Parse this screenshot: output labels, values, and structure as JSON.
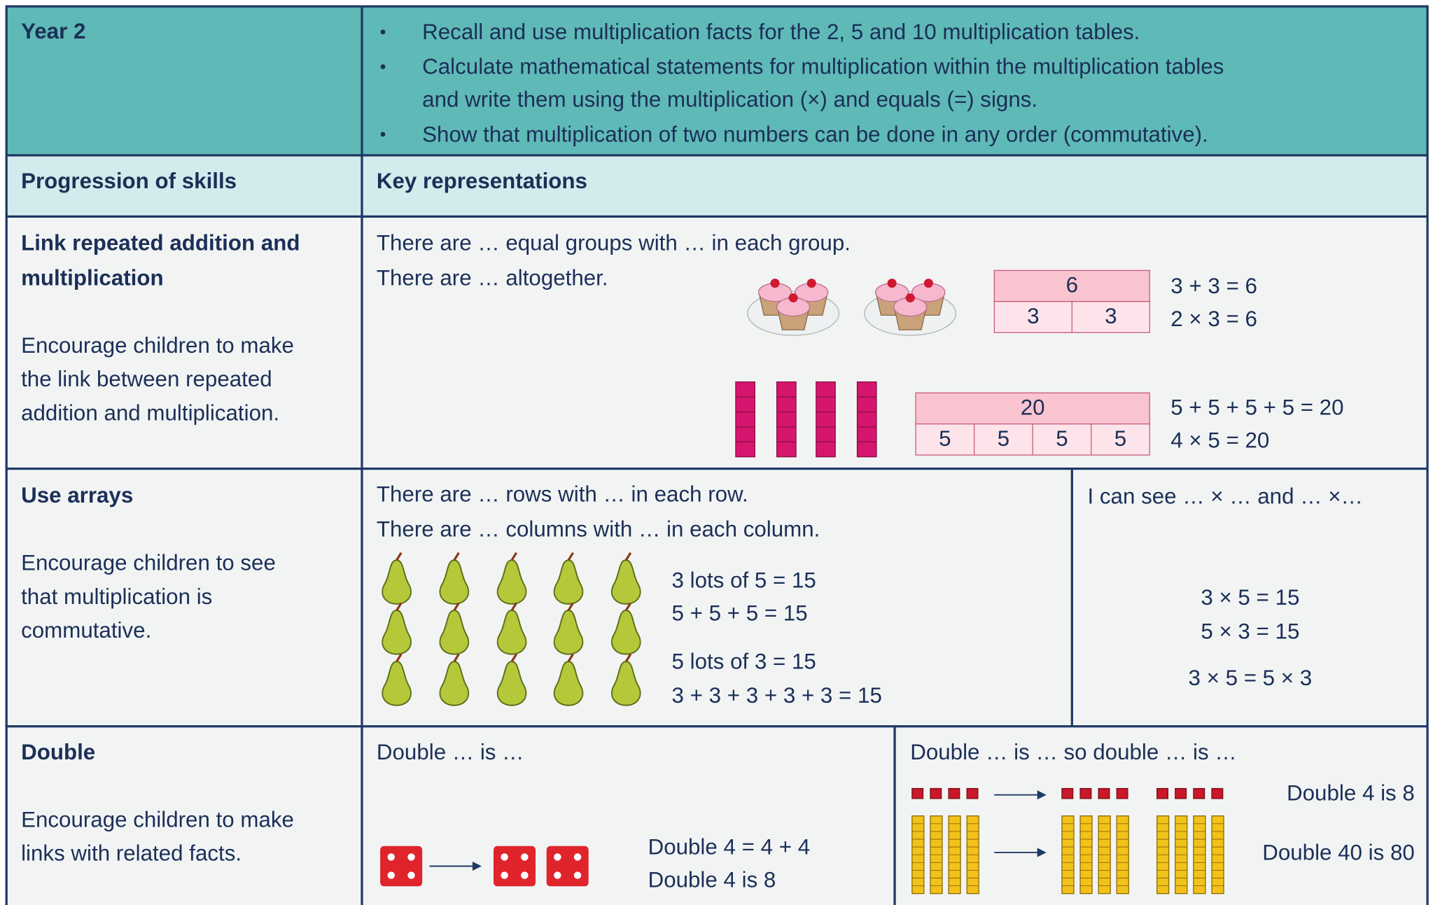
{
  "header": {
    "title": "Year 2",
    "objectives": [
      [
        "Recall and use multiplication facts for the 2, 5 and 10 multiplication tables."
      ],
      [
        "Calculate mathematical statements for multiplication within the multiplication tables",
        "and write them using the multiplication (×) and equals (=) signs."
      ],
      [
        "Show that multiplication of two numbers can be done in any order (commutative)."
      ]
    ]
  },
  "columns": [
    "Progression of skills",
    "Key representations"
  ],
  "rows": [
    {
      "skill": [
        "Link repeated addition and",
        "multiplication"
      ],
      "description": [
        "Encourage children to make",
        "the link between repeated",
        "addition and multiplication."
      ],
      "prompts": [
        "There are … equal groups with … in each group.",
        "There are … altogether."
      ],
      "bar_models": [
        {
          "total": 6,
          "parts": [
            3,
            3
          ],
          "equations": [
            "3 + 3 = 6",
            "2 × 3 = 6"
          ]
        },
        {
          "total": 20,
          "parts": [
            5,
            5,
            5,
            5
          ],
          "equations": [
            "5 + 5 + 5 + 5 = 20",
            "4 × 5 = 20"
          ]
        }
      ]
    },
    {
      "skill": [
        "Use arrays"
      ],
      "description": [
        "Encourage children to see",
        "that multiplication is",
        "commutative."
      ],
      "prompts": [
        "There are … rows with … in each row.",
        "There are … columns with … in each column."
      ],
      "equations": [
        "3 lots of 5 = 15",
        "5 + 5 + 5 = 15",
        "5 lots of 3 = 15",
        "3 + 3 + 3 + 3 + 3 = 15"
      ],
      "side": {
        "prompt": "I can see … × … and … ×…",
        "equations": [
          "3 × 5 = 15",
          "5 × 3 = 15",
          "3 × 5 = 5 × 3"
        ]
      }
    },
    {
      "skill": [
        "Double"
      ],
      "description": [
        "Encourage children to make",
        "links with related facts."
      ],
      "left": {
        "prompt": "Double … is …",
        "equations": [
          "Double 4 = 4 + 4",
          "Double 4 is 8"
        ]
      },
      "right": {
        "prompt": "Double … is … so double … is …",
        "facts": [
          "Double 4 is 8",
          "Double 40 is 80"
        ]
      }
    }
  ]
}
